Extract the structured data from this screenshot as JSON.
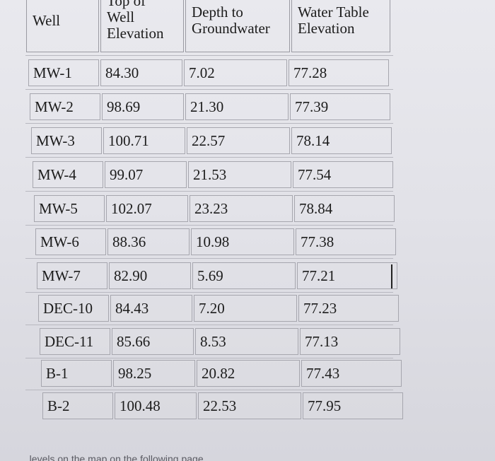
{
  "table": {
    "headers": [
      {
        "id": "well",
        "lines": [
          "Well"
        ]
      },
      {
        "id": "top",
        "lines": [
          "Top of",
          "Well",
          "Elevation"
        ]
      },
      {
        "id": "depth",
        "lines": [
          "Depth to",
          "Groundwater"
        ]
      },
      {
        "id": "wte",
        "lines": [
          "Water Table",
          "Elevation"
        ]
      }
    ],
    "rows": [
      {
        "well": "MW-1",
        "top": "84.30",
        "depth": "7.02",
        "wte": "77.28"
      },
      {
        "well": "MW-2",
        "top": "98.69",
        "depth": "21.30",
        "wte": "77.39"
      },
      {
        "well": "MW-3",
        "top": "100.71",
        "depth": "22.57",
        "wte": "78.14"
      },
      {
        "well": "MW-4",
        "top": "99.07",
        "depth": "21.53",
        "wte": "77.54"
      },
      {
        "well": "MW-5",
        "top": "102.07",
        "depth": "23.23",
        "wte": "78.84"
      },
      {
        "well": "MW-6",
        "top": "88.36",
        "depth": "10.98",
        "wte": "77.38"
      },
      {
        "well": "MW-7",
        "top": "82.90",
        "depth": "5.69",
        "wte": "77.21"
      },
      {
        "well": "DEC-10",
        "top": "84.43",
        "depth": "7.20",
        "wte": "77.23"
      },
      {
        "well": "DEC-11",
        "top": "85.66",
        "depth": "8.53",
        "wte": "77.13"
      },
      {
        "well": "B-1",
        "top": "98.25",
        "depth": "20.82",
        "wte": "77.43"
      },
      {
        "well": "B-2",
        "top": "100.48",
        "depth": "22.53",
        "wte": "77.95"
      }
    ]
  },
  "footer": {
    "text": "...levels on the map on the following page"
  }
}
